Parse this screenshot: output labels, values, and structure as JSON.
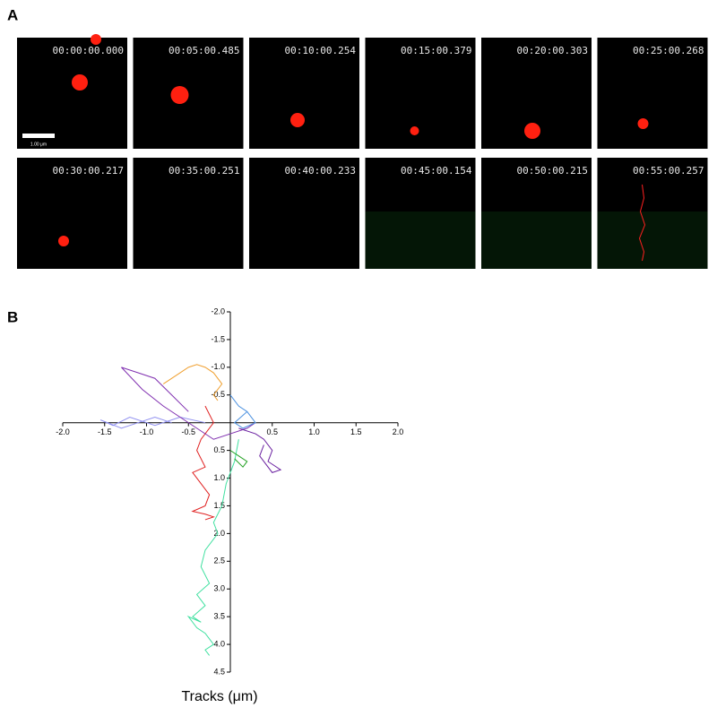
{
  "panel_a": {
    "label": "A",
    "scale_bar": "1.00 μm",
    "frames": [
      "00:00:00.000",
      "00:05:00.485",
      "00:10:00.254",
      "00:15:00.379",
      "00:20:00.303",
      "00:25:00.268",
      "00:30:00.217",
      "00:35:00.251",
      "00:40:00.233",
      "00:45:00.154",
      "00:50:00.215",
      "00:55:00.257"
    ]
  },
  "chart_data": {
    "type": "line",
    "panel_label": "B",
    "xlabel": "Tracks (μm)",
    "xlim": [
      -2,
      2
    ],
    "ylim": [
      -2,
      4.5
    ],
    "y_inverted": true,
    "xticks": [
      {
        "value": -2,
        "label": "-2.0"
      },
      {
        "value": -1.5,
        "label": "-1.5"
      },
      {
        "value": -1,
        "label": "-1.0"
      },
      {
        "value": -0.5,
        "label": "-0.5"
      },
      {
        "value": 0.5,
        "label": "0.5"
      },
      {
        "value": 1,
        "label": "1.0"
      },
      {
        "value": 1.5,
        "label": "1.5"
      },
      {
        "value": 2,
        "label": "2.0"
      }
    ],
    "yticks": [
      {
        "value": -2,
        "label": "-2.0"
      },
      {
        "value": -1.5,
        "label": "-1.5"
      },
      {
        "value": -1,
        "label": "-1.0"
      },
      {
        "value": -0.5,
        "label": "-0.5"
      },
      {
        "value": 0.5,
        "label": "0.5"
      },
      {
        "value": 1,
        "label": "1.0"
      },
      {
        "value": 1.5,
        "label": "1.5"
      },
      {
        "value": 2,
        "label": "2.0"
      },
      {
        "value": 2.5,
        "label": "2.5"
      },
      {
        "value": 3,
        "label": "3.0"
      },
      {
        "value": 3.5,
        "label": "3.5"
      },
      {
        "value": 4,
        "label": "4.0"
      },
      {
        "value": 4.5,
        "label": "4.5"
      }
    ],
    "series": [
      {
        "color": "#40e0a0",
        "x": [
          0.1,
          0.05,
          -0.05,
          -0.1,
          -0.2,
          -0.15,
          -0.3,
          -0.35,
          -0.25,
          -0.4,
          -0.3,
          -0.45,
          -0.35,
          -0.5,
          -0.4,
          -0.3,
          -0.25,
          -0.2,
          -0.3,
          -0.25
        ],
        "y": [
          0.3,
          0.7,
          1.1,
          1.5,
          1.8,
          2.0,
          2.3,
          2.6,
          2.9,
          3.1,
          3.3,
          3.5,
          3.6,
          3.5,
          3.7,
          3.8,
          3.9,
          4.0,
          4.1,
          4.2
        ]
      },
      {
        "color": "#e02020",
        "x": [
          -0.3,
          -0.2,
          -0.35,
          -0.4,
          -0.3,
          -0.45,
          -0.35,
          -0.25,
          -0.3,
          -0.45,
          -0.3,
          -0.2,
          -0.3
        ],
        "y": [
          -0.3,
          0,
          0.3,
          0.5,
          0.8,
          0.9,
          1.1,
          1.3,
          1.5,
          1.6,
          1.65,
          1.7,
          1.75
        ]
      },
      {
        "color": "#f0a030",
        "x": [
          -0.8,
          -0.6,
          -0.5,
          -0.4,
          -0.3,
          -0.2,
          -0.1,
          -0.2,
          -0.15
        ],
        "y": [
          -0.7,
          -0.9,
          -1.0,
          -1.05,
          -1.0,
          -0.9,
          -0.7,
          -0.5,
          -0.4
        ]
      },
      {
        "color": "#9090f0",
        "x": [
          -0.3,
          -0.6,
          -0.9,
          -1.2,
          -1.4,
          -1.55,
          -1.3,
          -1.1,
          -0.9,
          -0.7
        ],
        "y": [
          0,
          -0.1,
          0.05,
          -0.1,
          0.05,
          -0.05,
          0.1,
          0,
          -0.1,
          0
        ]
      },
      {
        "color": "#8030b0",
        "x": [
          -0.5,
          -0.7,
          -0.9,
          -1.1,
          -1.3,
          -1.05,
          -0.8,
          -0.6,
          -0.4,
          -0.2,
          0,
          0.2,
          0.3
        ],
        "y": [
          -0.2,
          -0.5,
          -0.8,
          -0.9,
          -1.0,
          -0.6,
          -0.3,
          -0.1,
          0.1,
          0.3,
          0.2,
          0.1,
          0
        ]
      },
      {
        "color": "#6a20a0",
        "x": [
          0.1,
          0.3,
          0.4,
          0.5,
          0.45,
          0.6,
          0.5,
          0.35,
          0.4
        ],
        "y": [
          0.1,
          0.2,
          0.3,
          0.5,
          0.7,
          0.85,
          0.9,
          0.6,
          0.4
        ]
      },
      {
        "color": "#4a90e0",
        "x": [
          0,
          0.1,
          0.2,
          0.05,
          0.15,
          0.3,
          0.2
        ],
        "y": [
          -0.5,
          -0.3,
          -0.2,
          0,
          0.1,
          0,
          -0.2
        ]
      },
      {
        "color": "#20a020",
        "x": [
          0,
          0.1,
          0.2,
          0.15,
          0.05
        ],
        "y": [
          0.5,
          0.6,
          0.7,
          0.8,
          0.65
        ]
      }
    ]
  }
}
